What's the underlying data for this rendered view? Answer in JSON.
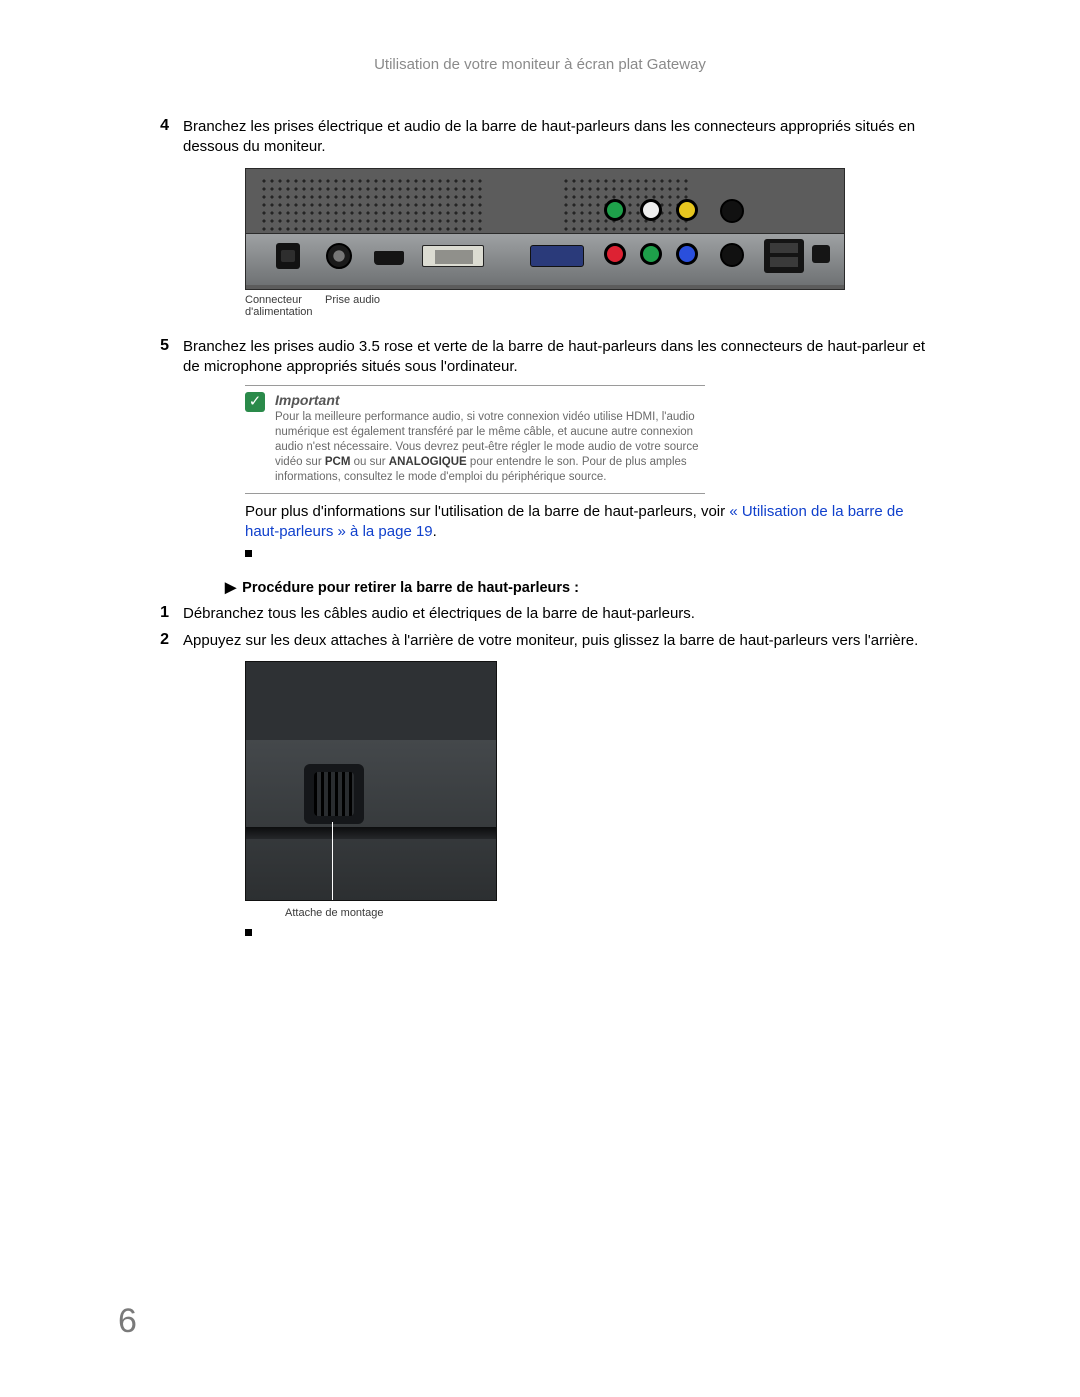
{
  "header": {
    "title": "Utilisation de votre moniteur à écran plat Gateway"
  },
  "steps_a": [
    {
      "num": "4",
      "text": "Branchez les prises électrique et audio de la barre de haut-parleurs dans les connecteurs appropriés situés en dessous du moniteur."
    }
  ],
  "figure1": {
    "labels": {
      "power": "Connecteur d'alimentation",
      "audio": "Prise audio"
    },
    "colors": {
      "panel_bg": "#5c5c5c",
      "bar_top": "#9ea1a3",
      "bar_bot": "#6f7274",
      "rca_red": "#dd2233",
      "rca_green": "#1ea04a",
      "rca_blue": "#2a4fdc",
      "rca_yellow": "#e7c61f",
      "vga_blue": "#2a3a7a",
      "dvi": "#dcdcd2"
    }
  },
  "steps_b": [
    {
      "num": "5",
      "text": "Branchez les prises audio 3.5 rose et verte de la barre de haut-parleurs dans les connecteurs de haut-parleur et de microphone appropriés situés sous l'ordinateur."
    }
  ],
  "important": {
    "heading": "Important",
    "body_pre": "Pour la meilleure performance audio, si votre connexion vidéo utilise HDMI, l'audio numérique est également transféré par le même câble, et aucune autre connexion audio n'est nécessaire. Vous devrez peut-être régler le mode audio de votre source vidéo sur ",
    "bold1": "PCM",
    "mid": " ou sur ",
    "bold2": "ANALOGIQUE",
    "body_post": " pour entendre le son. Pour de plus amples informations, consultez le mode d'emploi du périphérique source.",
    "checkmark": "✓",
    "box_color": "#2a8a4a"
  },
  "more_info": {
    "pre": "Pour plus d'informations sur l'utilisation de la barre de haut-parleurs, voir ",
    "link": "« Utilisation de la barre de haut-parleurs » à la page 19",
    "post": "."
  },
  "procedure": {
    "arrow": "▶",
    "title": "Procédure pour retirer la barre de haut-parleurs :",
    "steps": [
      {
        "num": "1",
        "text": "Débranchez tous les câbles audio et électriques de la barre de haut-parleurs."
      },
      {
        "num": "2",
        "text": "Appuyez sur les deux attaches à l'arrière de votre moniteur, puis glissez la barre de haut-parleurs vers l'arrière."
      }
    ]
  },
  "figure2": {
    "label": "Attache de montage",
    "colors": {
      "bg": "#2e3134",
      "body": "#44484b",
      "notch": "#15171a"
    }
  },
  "page_number": "6",
  "link_color": "#1040cc"
}
